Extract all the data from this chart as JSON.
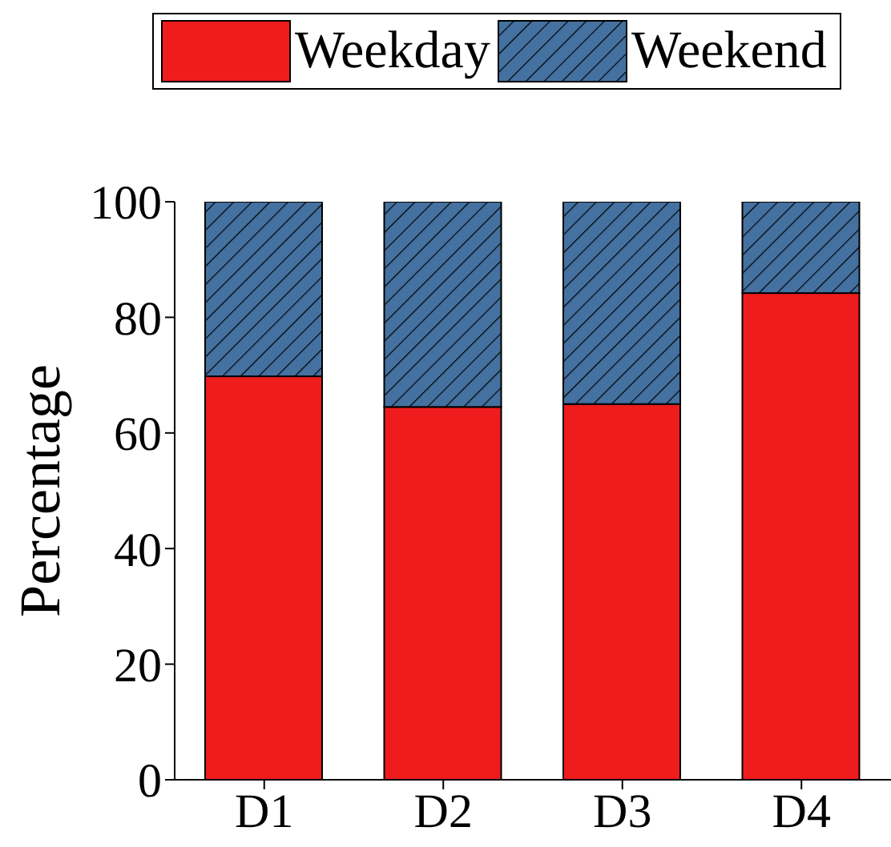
{
  "chart_data": {
    "type": "bar",
    "stacked": true,
    "ylabel": "Percentage",
    "categories": [
      "D1",
      "D2",
      "D3",
      "D4"
    ],
    "series": [
      {
        "name": "Weekday",
        "color": "#ee1c1c",
        "values": [
          69.8,
          64.5,
          65.0,
          84.2
        ]
      },
      {
        "name": "Weekend",
        "color": "#4471a0",
        "values": [
          30.2,
          35.5,
          35.0,
          15.8
        ]
      }
    ],
    "ylim": [
      0,
      100
    ],
    "yticks": [
      0,
      20,
      40,
      60,
      80,
      100
    ],
    "grid": false,
    "legend": "top"
  }
}
